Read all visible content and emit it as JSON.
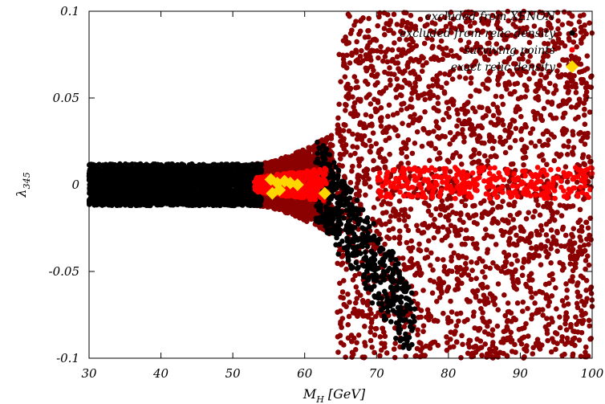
{
  "chart_data": {
    "type": "scatter",
    "title": "",
    "xlabel": "M_H [GeV]",
    "xlabel_main": "M",
    "xlabel_sub": "H",
    "xlabel_unit": " [GeV]",
    "ylabel": "λ_345",
    "ylabel_main": "λ",
    "ylabel_sub": "345",
    "xlim": [
      30,
      100
    ],
    "ylim": [
      -0.1,
      0.1
    ],
    "x_ticks": [
      30,
      40,
      50,
      60,
      70,
      80,
      90,
      100
    ],
    "x_tick_labels": [
      "30",
      "40",
      "50",
      "60",
      "70",
      "80",
      "90",
      "100"
    ],
    "y_ticks": [
      -0.1,
      -0.05,
      0,
      0.05,
      0.1
    ],
    "y_tick_labels": [
      "-0.1",
      "-0.05",
      "0",
      "0.05",
      "0.1"
    ],
    "grid": false,
    "legend_position": "top-right",
    "series": [
      {
        "name": "excluded from XENON",
        "color": "#8b0000",
        "marker": "circle",
        "distribution": [
          {
            "x": [
              64,
              100
            ],
            "y": [
              -0.1,
              0.1
            ]
          },
          {
            "x": [
              53,
              64
            ],
            "y_envelope": "funnel",
            "y_max_at_53": 0.012,
            "y_max_at_64": 0.03
          }
        ]
      },
      {
        "name": "excluded from relic density",
        "color": "#000000",
        "marker": "circle",
        "distribution": [
          {
            "x": [
              30,
              54
            ],
            "y": [
              -0.012,
              0.012
            ]
          },
          {
            "x": [
              62,
              75
            ],
            "y_envelope": "downward-band",
            "y_at_62": [
              -0.02,
              0.025
            ],
            "y_at_75": [
              -0.1,
              -0.06
            ]
          }
        ]
      },
      {
        "name": "surviving points",
        "color": "#ff0000",
        "marker": "circle",
        "distribution": [
          {
            "x": [
              53,
              63
            ],
            "y": [
              -0.01,
              0.01
            ]
          },
          {
            "x": [
              70,
              100
            ],
            "y": [
              -0.008,
              0.01
            ]
          }
        ]
      },
      {
        "name": "exact relic density",
        "color": "#ffd700",
        "marker": "diamond",
        "points": [
          {
            "x": 55.3,
            "y": 0.003
          },
          {
            "x": 55.5,
            "y": -0.005
          },
          {
            "x": 56.2,
            "y": 0.001
          },
          {
            "x": 56.5,
            "y": -0.003
          },
          {
            "x": 57.2,
            "y": 0.002
          },
          {
            "x": 58.0,
            "y": 0.001
          },
          {
            "x": 59.0,
            "y": 0.0
          },
          {
            "x": 62.8,
            "y": -0.005
          }
        ]
      }
    ]
  }
}
